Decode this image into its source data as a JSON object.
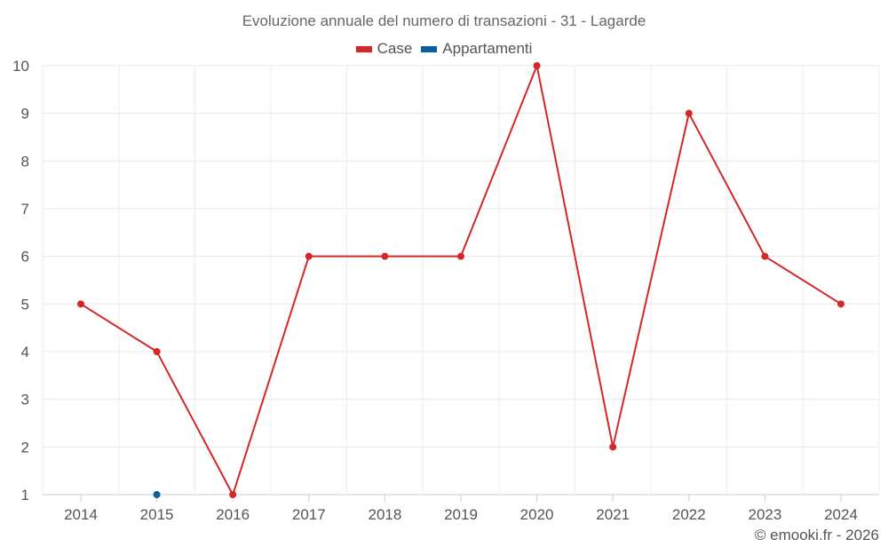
{
  "chart_data": {
    "type": "line",
    "title": "Evoluzione annuale del numero di transazioni - 31 - Lagarde",
    "categories": [
      "2014",
      "2015",
      "2016",
      "2017",
      "2018",
      "2019",
      "2020",
      "2021",
      "2022",
      "2023",
      "2024"
    ],
    "series": [
      {
        "name": "Case",
        "color": "#d62728",
        "values": [
          5,
          4,
          1,
          6,
          6,
          6,
          10,
          2,
          9,
          6,
          5
        ]
      },
      {
        "name": "Appartamenti",
        "color": "#0b5e9e",
        "values": [
          null,
          1,
          null,
          null,
          null,
          null,
          null,
          null,
          null,
          null,
          null
        ]
      }
    ],
    "xlabel": "",
    "ylabel": "",
    "ylim": [
      1,
      10
    ],
    "yticks": [
      1,
      2,
      3,
      4,
      5,
      6,
      7,
      8,
      9,
      10
    ],
    "grid": true,
    "legend_position": "top"
  },
  "header": {
    "title": "Evoluzione annuale del numero di transazioni - 31 - Lagarde"
  },
  "legend": {
    "items": [
      {
        "label": "Case",
        "color": "#d62728"
      },
      {
        "label": "Appartamenti",
        "color": "#0b5e9e"
      }
    ]
  },
  "footer": {
    "credit": "© emooki.fr - 2026"
  }
}
